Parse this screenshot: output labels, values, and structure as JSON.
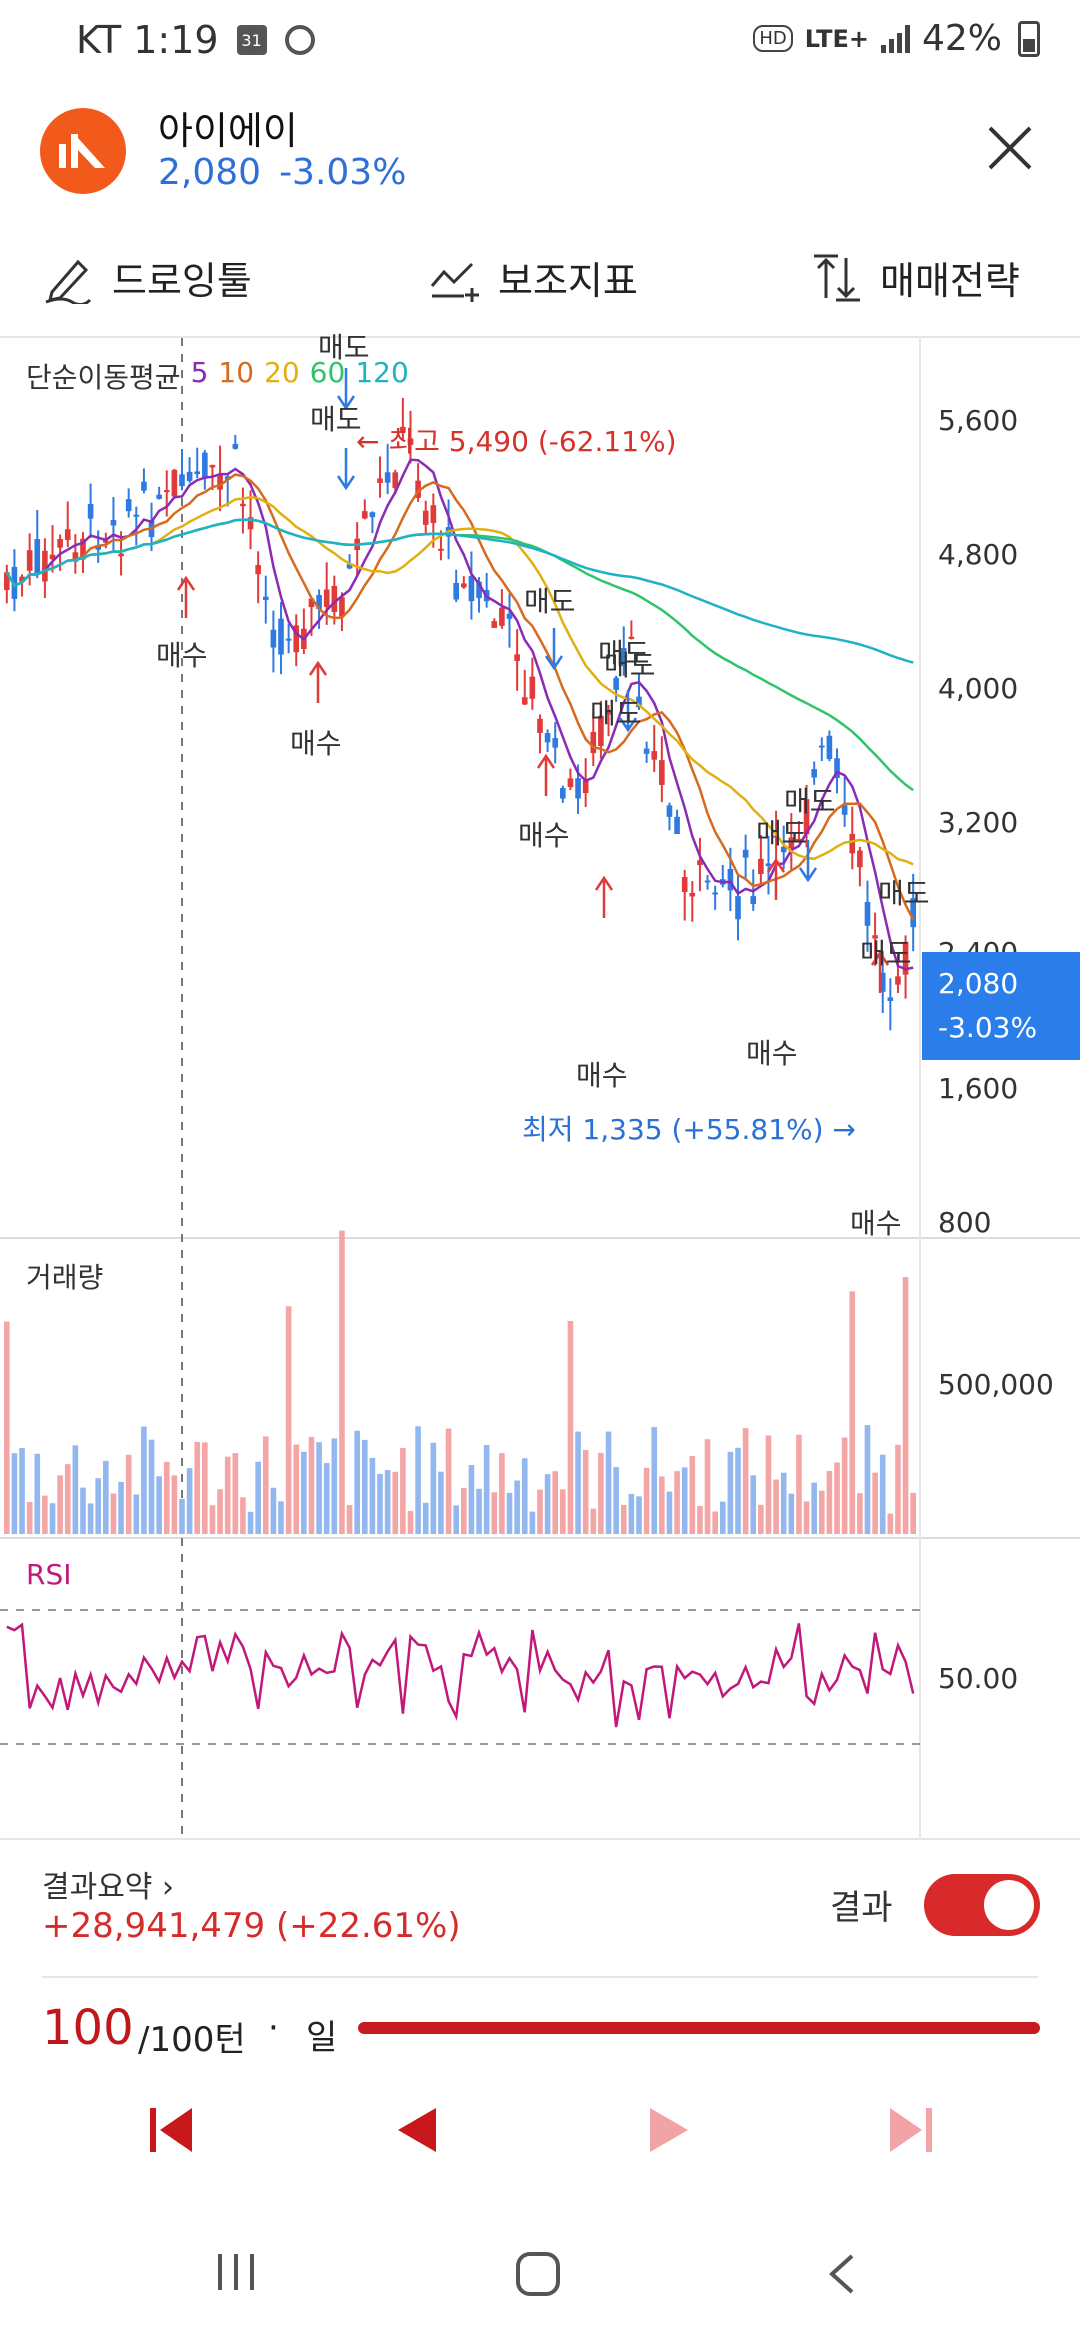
{
  "status_bar": {
    "carrier_time": "KT 1:19",
    "calendar_date": "31",
    "network": "LTE+",
    "hd": "HD",
    "battery": "42%"
  },
  "header": {
    "stock_name": "아이에이",
    "price": "2,080",
    "change": "-3.03%",
    "logo_color": "#f25a1c"
  },
  "tools": {
    "draw": "드로잉툴",
    "indicators": "보조지표",
    "strategy": "매매전략"
  },
  "chart": {
    "ma_legend": {
      "title": "단순이동평균",
      "p5": "5",
      "p10": "10",
      "p20": "20",
      "p60": "60",
      "p120": "120"
    },
    "price_axis": [
      "5,600",
      "4,800",
      "4,000",
      "3,200",
      "2,400",
      "1,600",
      "800"
    ],
    "current_price_tag": {
      "price": "2,080",
      "change": "-3.03%"
    },
    "high_annotation": "← 최고 5,490 (-62.11%)",
    "low_annotation": "최저 1,335 (+55.81%) →",
    "signals": {
      "buy": "매수",
      "sell": "매도"
    },
    "volume_label": "거래량",
    "volume_axis": "500,000",
    "rsi_label": "RSI",
    "rsi_axis": "50.00",
    "colors": {
      "up": "#e03a3a",
      "down": "#2f7ae0",
      "ma5": "#8a2ab5",
      "ma10": "#d76a1e",
      "ma20": "#e0b012",
      "ma60": "#2ec46b",
      "ma120": "#1fb2c5",
      "rsi": "#c2187a"
    }
  },
  "summary": {
    "title": "결과요약",
    "chevron": "›",
    "profit": "+28,941,479 (+22.61%)",
    "result_label": "결과",
    "result_toggle_on": true
  },
  "turns": {
    "current": "100",
    "total": "/100턴",
    "sep": "·",
    "unit": "일",
    "progress": 1.0
  },
  "playback": {
    "icons": [
      "skip-to-start-icon",
      "step-back-icon",
      "step-forward-icon",
      "skip-to-end-icon"
    ]
  }
}
